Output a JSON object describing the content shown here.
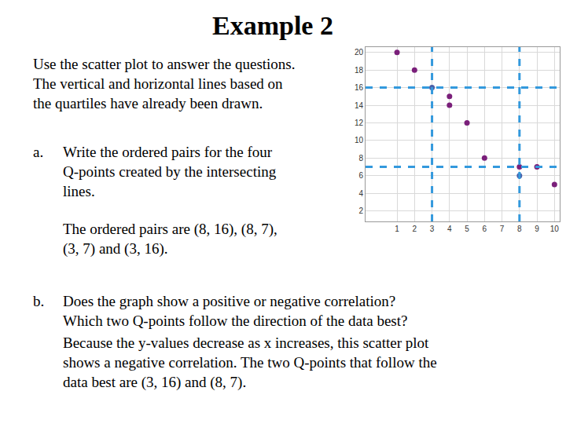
{
  "slide": {
    "title": "Example 2",
    "intro": [
      "Use the scatter plot to answer the questions.",
      "The vertical and horizontal lines based on",
      "the quartiles have already been drawn."
    ],
    "parts": [
      {
        "label": "a.",
        "question": [
          "Write the ordered pairs for the four",
          "Q-points created by the intersecting",
          "lines."
        ],
        "answer": [
          "The ordered pairs are (8, 16), (8, 7),",
          "(3, 7) and (3, 16)."
        ]
      },
      {
        "label": "b.",
        "question": [
          "Does the graph show a positive or negative correlation?",
          "Which two Q-points follow the direction of the data best?"
        ],
        "answer": [
          "Because the y-values decrease as x increases, this scatter plot",
          "shows a negative correlation.  The two Q-points that follow the",
          "data best are (3, 16) and (8, 7)."
        ]
      }
    ]
  },
  "chart_data": {
    "type": "scatter",
    "x": [
      1,
      2,
      3,
      4,
      4,
      5,
      6,
      8,
      8,
      9,
      10
    ],
    "values": [
      20,
      18,
      16,
      15,
      14,
      12,
      8,
      7,
      6,
      7,
      5
    ],
    "colors": [
      "#7a1f7a",
      "#7a1f7a",
      "#4a5fa8",
      "#7a1f7a",
      "#7a1f7a",
      "#7a1f7a",
      "#7a1f7a",
      "#7a1f7a",
      "#4a5fa8",
      "#7a1f7a",
      "#7a1f7a"
    ],
    "xlim": [
      -0.8,
      10.3
    ],
    "ylim": [
      0.8,
      20.6
    ],
    "xticks": [
      1,
      2,
      3,
      4,
      5,
      6,
      7,
      8,
      9,
      10
    ],
    "yticks": [
      2,
      4,
      6,
      8,
      10,
      12,
      14,
      16,
      18,
      20
    ],
    "grid": true,
    "quartile_lines": {
      "x": [
        3,
        8
      ],
      "y": [
        16,
        7
      ],
      "color": "#3399dd",
      "line_style": "dash"
    }
  }
}
